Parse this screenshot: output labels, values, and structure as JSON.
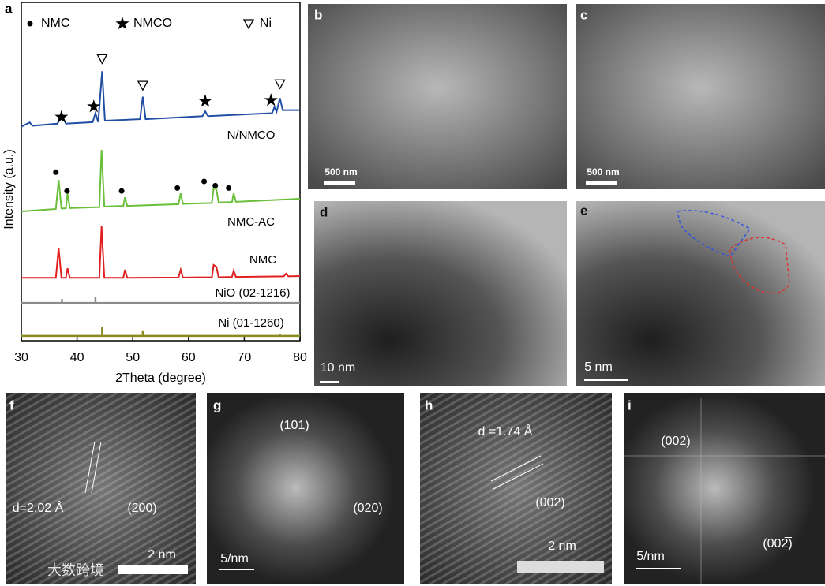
{
  "chart_data": {
    "type": "line",
    "panel": "a",
    "x_label": "2Theta (degree)",
    "y_label": "Intensity (a.u.)",
    "xlim": [
      30,
      80
    ],
    "xticks": [
      30,
      40,
      50,
      60,
      70,
      80
    ],
    "ylim": [
      0,
      113
    ],
    "series": [
      {
        "name": "N/NMCO",
        "color": "#1f4ea3",
        "x": [
          30,
          31.5,
          32,
          36.5,
          37.3,
          38,
          42.8,
          43.3,
          43.8,
          44.5,
          45,
          51.3,
          51.8,
          52.3,
          62.5,
          63,
          63.5,
          75,
          75.4,
          75.8,
          76.4,
          76.9,
          80
        ],
        "values": [
          71.5,
          72.9,
          71.8,
          72.5,
          75.3,
          72.5,
          73,
          76,
          73,
          90,
          73.5,
          74,
          81.5,
          74,
          75,
          76.6,
          75,
          76,
          78,
          76.5,
          81,
          77,
          77
        ]
      },
      {
        "name": "NMC-AC",
        "color": "#6abf3a",
        "x": [
          30,
          36.2,
          36.7,
          37.2,
          38,
          38.3,
          38.7,
          44,
          44.4,
          44.9,
          48.3,
          48.6,
          49,
          58.2,
          58.6,
          59,
          64.2,
          64.5,
          65,
          65.4,
          67.8,
          68.1,
          68.5,
          80
        ],
        "values": [
          43.2,
          44,
          53.7,
          44.2,
          44.2,
          49.2,
          44.3,
          44.6,
          63.7,
          44.8,
          45,
          47.9,
          45,
          45.6,
          49.2,
          45.7,
          46,
          51,
          50.5,
          46.2,
          46.3,
          49.2,
          46.4,
          47.4
        ]
      },
      {
        "name": "NMC",
        "color": "#e02020",
        "x": [
          30,
          36.2,
          36.7,
          37.2,
          38,
          38.3,
          38.7,
          44,
          44.4,
          44.9,
          48.3,
          48.6,
          49,
          58.2,
          58.6,
          59,
          64.2,
          64.5,
          65,
          65.4,
          67.8,
          68.1,
          68.5,
          77.1,
          77.5,
          77.9,
          80
        ],
        "values": [
          21,
          21,
          31,
          21,
          21,
          24.2,
          21,
          21,
          38.2,
          21,
          21,
          23.7,
          21,
          21.1,
          23.7,
          21.1,
          21.2,
          25.3,
          24.7,
          21.2,
          21.3,
          23.4,
          21.3,
          21.5,
          22.4,
          21.5,
          21.6
        ]
      }
    ],
    "references": [
      {
        "name": "NiO (02-1216)",
        "color": "#8c8c8c",
        "baseline": 12.6,
        "x": [
          37.3,
          43.3
        ],
        "values": [
          13.9,
          14.7
        ]
      },
      {
        "name": "Ni (01-1260)",
        "color": "#8a8a1e",
        "baseline": 1.6,
        "x": [
          44.5,
          51.8,
          76.4
        ],
        "values": [
          4.7,
          3.2,
          2.1
        ]
      }
    ],
    "peak_markers": [
      {
        "name": "NMC",
        "symbol": "circle",
        "x": [
          36.2,
          38.2,
          48,
          58,
          62.8,
          64.8,
          67.2
        ],
        "values": [
          56.3,
          50,
          50,
          51,
          53.2,
          51.8,
          51
        ]
      },
      {
        "name": "NMCO",
        "symbol": "star",
        "x": [
          37.2,
          43,
          63,
          74.8
        ],
        "values": [
          74.7,
          78.2,
          80,
          80.3
        ]
      },
      {
        "name": "Ni",
        "symbol": "triangle",
        "x": [
          44.5,
          51.8,
          76.4
        ],
        "values": [
          94.2,
          85.3,
          85.8
        ]
      }
    ]
  },
  "panels": [
    {
      "letter": "b",
      "scale_bar": "500 nm",
      "annotations": []
    },
    {
      "letter": "c",
      "scale_bar": "500 nm",
      "annotations": []
    },
    {
      "letter": "d",
      "scale_bar": "10 nm",
      "annotations": []
    },
    {
      "letter": "e",
      "scale_bar": "5 nm",
      "annotations": []
    },
    {
      "letter": "f",
      "scale_bar": "2 nm",
      "annotations": [
        "d=2.02 Å",
        "(200)"
      ]
    },
    {
      "letter": "g",
      "scale_bar": "5/nm",
      "annotations": [
        "(101)",
        "(020)"
      ]
    },
    {
      "letter": "h",
      "scale_bar": "2 nm",
      "annotations": [
        "d =1.74 Å",
        "(002)"
      ]
    },
    {
      "letter": "i",
      "scale_bar": "5/nm",
      "annotations": [
        "(002)",
        "(002̅)"
      ]
    }
  ],
  "watermark": "大数跨境"
}
